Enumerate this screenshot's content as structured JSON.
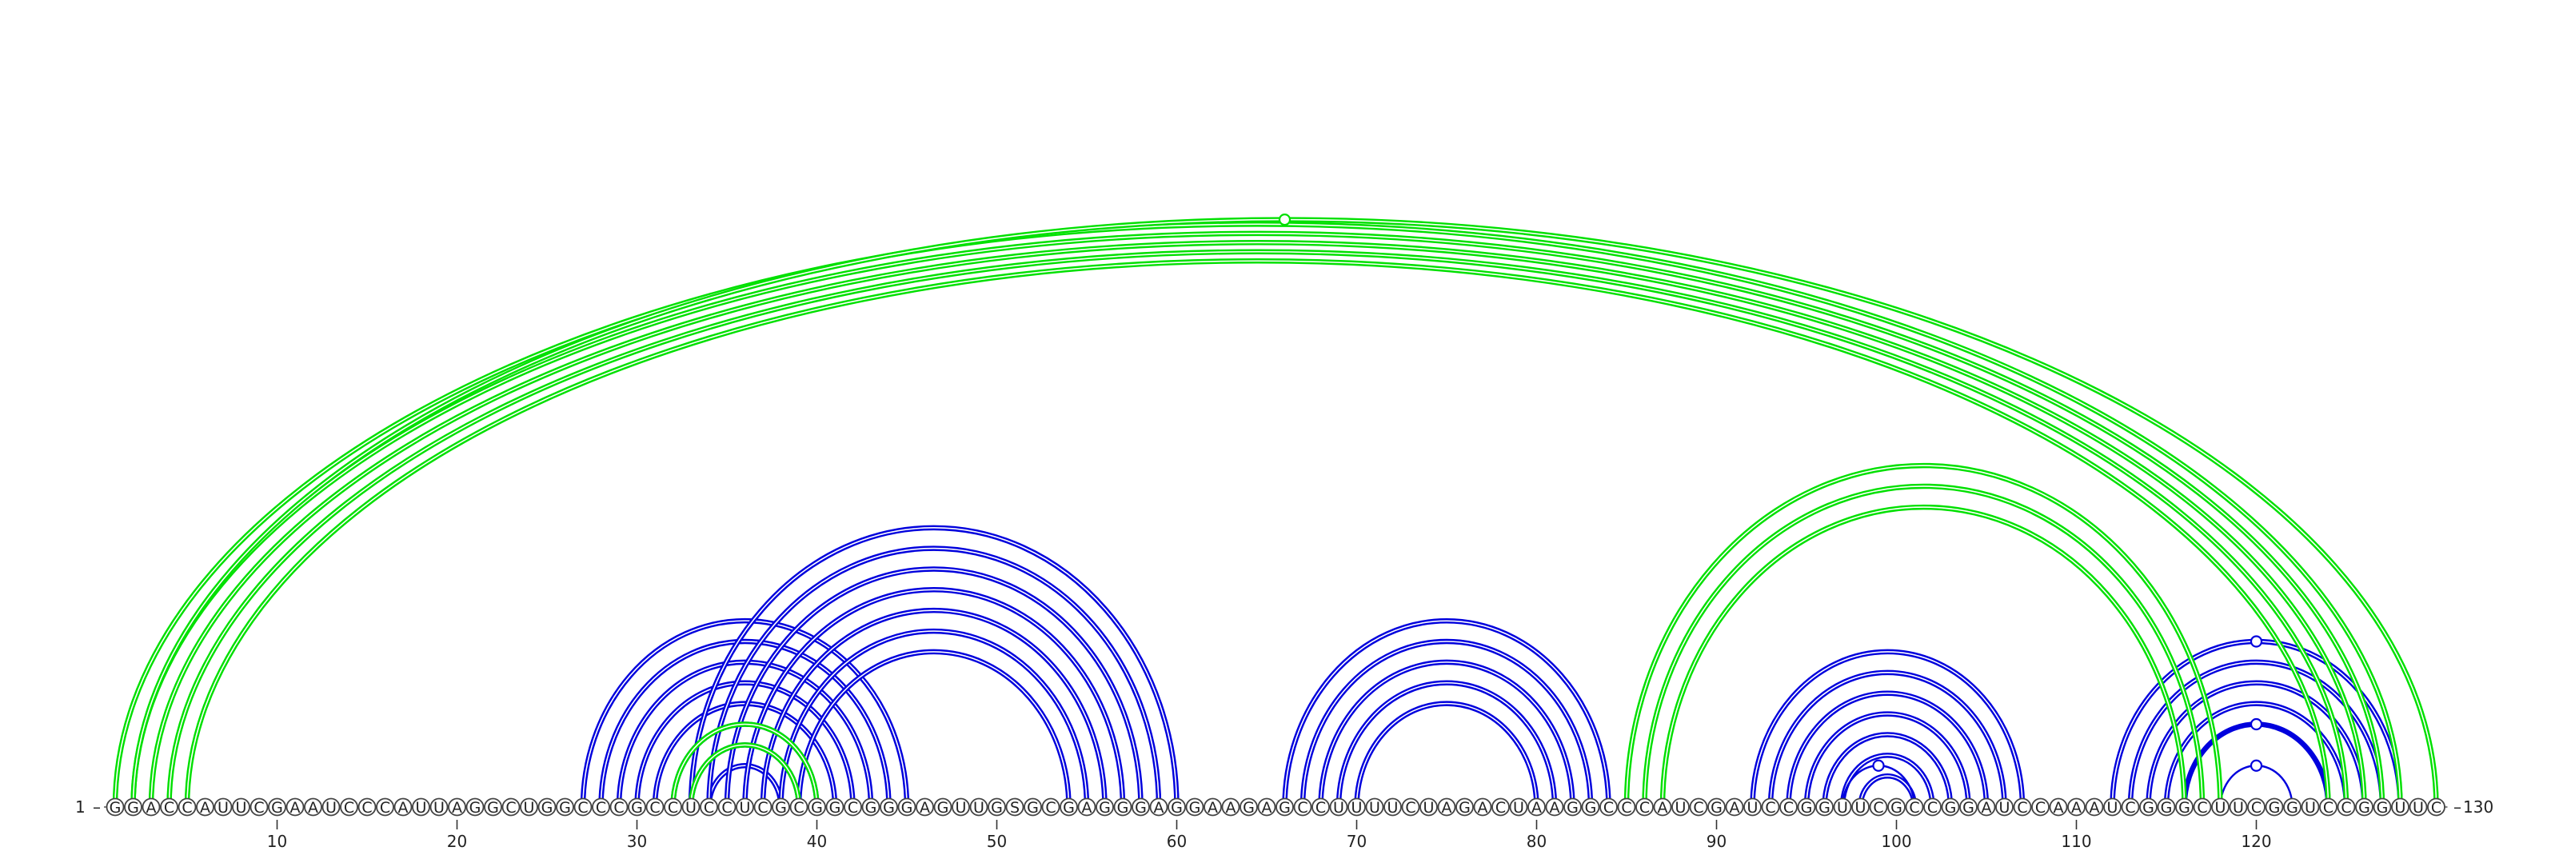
{
  "sequence": "GGACCAUUCGAAUCCCAUUAGGCUGGCCCGCCUCCUCGCGGCGGGAGUUGSGCGAGGGAGGAAGAGCCUUUUCUAGACUAAGGCCCAUCGAUCCGGUUCGCCGGAUCCAAAUCGGGCUUCGGUCCGGUUC",
  "start_label": "1",
  "end_label": "130",
  "ticks": [
    10,
    20,
    30,
    40,
    50,
    60,
    70,
    80,
    90,
    100,
    110,
    120
  ],
  "colors": {
    "intra_helix": "#0000dd",
    "long_range": "#00e000"
  },
  "helices": [
    {
      "i": 27,
      "j": 45,
      "len": 3,
      "color": "blue",
      "shape": "double"
    },
    {
      "i": 30,
      "j": 42,
      "len": 5,
      "color": "blue",
      "shape": "double"
    },
    {
      "i": 33,
      "j": 60,
      "len": 7,
      "color": "blue",
      "shape": "double"
    },
    {
      "i": 32,
      "j": 40,
      "len": 2,
      "color": "green",
      "shape": "double"
    },
    {
      "i": 66,
      "j": 84,
      "len": 5,
      "color": "blue",
      "shape": "double"
    },
    {
      "i": 92,
      "j": 107,
      "len": 7,
      "color": "blue",
      "shape": "double"
    },
    {
      "i": 97,
      "j": 101,
      "len": 1,
      "color": "blue",
      "shape": "single"
    },
    {
      "i": 112,
      "j": 128,
      "len": 5,
      "color": "blue",
      "shape": "double"
    },
    {
      "i": 116,
      "j": 124,
      "len": 1,
      "color": "blue",
      "shape": "single"
    },
    {
      "i": 118,
      "j": 122,
      "len": 1,
      "color": "blue",
      "shape": "single"
    },
    {
      "i": 85,
      "j": 118,
      "len": 3,
      "color": "green",
      "shape": "double"
    },
    {
      "i": 1,
      "j": 128,
      "len": 5,
      "color": "green",
      "shape": "double"
    },
    {
      "i": 2,
      "j": 130,
      "len": 1,
      "color": "green",
      "shape": "double"
    }
  ],
  "loop_markers": [
    {
      "pos": 66,
      "color": "green",
      "i": 2,
      "j": 130
    },
    {
      "pos": 99,
      "color": "blue",
      "i": 97,
      "j": 101
    },
    {
      "pos": 120,
      "color": "blue",
      "i": 118,
      "j": 122
    },
    {
      "pos": 120,
      "color": "blue",
      "i": 116,
      "j": 124
    },
    {
      "pos": 120,
      "color": "blue",
      "i": 112,
      "j": 128
    }
  ]
}
